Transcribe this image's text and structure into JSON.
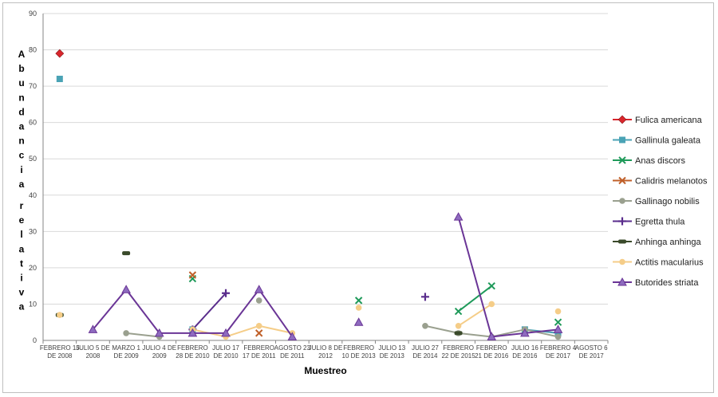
{
  "chart_data": {
    "type": "line",
    "title": "",
    "xlabel": "Muestreo",
    "ylabel": "Abundancia relativa",
    "ylim": [
      0,
      90
    ],
    "yticks": [
      0,
      10,
      20,
      30,
      40,
      50,
      60,
      70,
      80,
      90
    ],
    "grid": "horizontal",
    "legend_position": "right",
    "categories": [
      [
        "FEBRERO 15",
        "DE 2008"
      ],
      [
        "JULIO 5 DE",
        "2008"
      ],
      [
        "MARZO 1",
        "DE 2009"
      ],
      [
        "JULIO 4 DE",
        "2009"
      ],
      [
        "FEBRERO",
        "28 DE 2010"
      ],
      [
        "JULIO 17",
        "DE 2010"
      ],
      [
        "FEBRERO",
        "17 DE 2011"
      ],
      [
        "AGOSTO 23",
        "DE 2011"
      ],
      [
        "JULIO 8 DE",
        "2012"
      ],
      [
        "FEBRERO",
        "10 DE 2013"
      ],
      [
        "JULIO 13",
        "DE 2013"
      ],
      [
        "JULIO 27",
        "DE 2014"
      ],
      [
        "FEBRERO",
        "22 DE 2015"
      ],
      [
        "FEBRERO",
        "21 DE 2016"
      ],
      [
        "JULIO 16",
        "DE 2016"
      ],
      [
        "FEBRERO 4",
        "DE 2017"
      ],
      [
        "AGOSTO 6",
        "DE 2017"
      ]
    ],
    "series": [
      {
        "name": "Fulica americana",
        "color": "#d9262c",
        "marker": "diamond",
        "values": [
          79,
          null,
          null,
          null,
          null,
          null,
          null,
          null,
          null,
          null,
          null,
          null,
          null,
          null,
          null,
          null,
          null
        ]
      },
      {
        "name": "Gallinula galeata",
        "color": "#4aa3b5",
        "marker": "square",
        "values": [
          72,
          null,
          null,
          null,
          3,
          null,
          null,
          null,
          null,
          null,
          null,
          null,
          null,
          null,
          3,
          2,
          null
        ]
      },
      {
        "name": "Anas discors",
        "color": "#1f9a5a",
        "marker": "x",
        "values": [
          null,
          null,
          null,
          null,
          17,
          null,
          null,
          null,
          null,
          11,
          null,
          null,
          8,
          15,
          null,
          5,
          null
        ]
      },
      {
        "name": "Calidris melanotos",
        "color": "#c0602a",
        "marker": "x",
        "values": [
          null,
          null,
          null,
          null,
          18,
          null,
          2,
          null,
          null,
          null,
          null,
          null,
          null,
          null,
          null,
          null,
          null
        ]
      },
      {
        "name": "Gallinago nobilis",
        "color": "#9aa08f",
        "marker": "circle",
        "values": [
          null,
          null,
          2,
          1,
          null,
          null,
          11,
          null,
          null,
          null,
          null,
          4,
          2,
          1,
          3,
          1,
          null
        ]
      },
      {
        "name": "Egretta thula",
        "color": "#5a2d8c",
        "marker": "plus",
        "values": [
          null,
          null,
          null,
          null,
          3,
          13,
          null,
          null,
          null,
          null,
          null,
          12,
          null,
          null,
          null,
          null,
          null
        ]
      },
      {
        "name": "Anhinga anhinga",
        "color": "#3a4a2a",
        "marker": "bar",
        "values": [
          7,
          null,
          24,
          null,
          null,
          null,
          null,
          null,
          null,
          null,
          null,
          null,
          2,
          null,
          null,
          null,
          null
        ]
      },
      {
        "name": "Actitis macularius",
        "color": "#f5cd88",
        "marker": "circle",
        "values": [
          7,
          null,
          null,
          null,
          3,
          1,
          4,
          2,
          null,
          9,
          null,
          null,
          4,
          10,
          null,
          8,
          null
        ]
      },
      {
        "name": "Butorides striata",
        "color": "#6a3596",
        "marker": "triangle",
        "values": [
          null,
          3,
          14,
          2,
          2,
          2,
          14,
          1,
          null,
          5,
          null,
          null,
          34,
          1,
          2,
          3,
          null
        ]
      }
    ]
  }
}
